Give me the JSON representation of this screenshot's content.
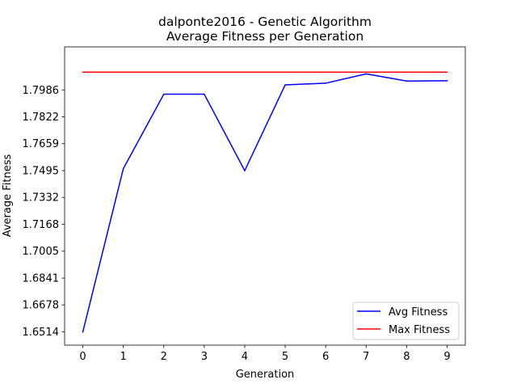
{
  "chart_data": {
    "type": "line",
    "title": "dalponte2016 - Genetic Algorithm",
    "subtitle": "Average Fitness per Generation",
    "xlabel": "Generation",
    "ylabel": "Average Fitness",
    "x": [
      0,
      1,
      2,
      3,
      4,
      5,
      6,
      7,
      8,
      9
    ],
    "x_ticks": [
      "0",
      "1",
      "2",
      "3",
      "4",
      "5",
      "6",
      "7",
      "8",
      "9"
    ],
    "y_ticks": [
      "1.6514",
      "1.6678",
      "1.6841",
      "1.7005",
      "1.7168",
      "1.7332",
      "1.7495",
      "1.7659",
      "1.7822",
      "1.7986"
    ],
    "y_tick_values": [
      1.6514,
      1.6678,
      1.6841,
      1.7005,
      1.7168,
      1.7332,
      1.7495,
      1.7659,
      1.7822,
      1.7986
    ],
    "xlim": [
      -0.45,
      9.45
    ],
    "ylim": [
      1.6433,
      1.8248
    ],
    "grid": false,
    "legend_position": "lower right",
    "series": [
      {
        "name": "Avg Fitness",
        "color": "#0000ff",
        "values": [
          1.6514,
          1.7507,
          1.796,
          1.796,
          1.7495,
          1.8017,
          1.8027,
          1.8084,
          1.804,
          1.8042
        ]
      },
      {
        "name": "Max Fitness",
        "color": "#ff0000",
        "values": [
          1.8094,
          1.8094,
          1.8094,
          1.8094,
          1.8094,
          1.8094,
          1.8094,
          1.8094,
          1.8094,
          1.8094
        ]
      }
    ]
  }
}
